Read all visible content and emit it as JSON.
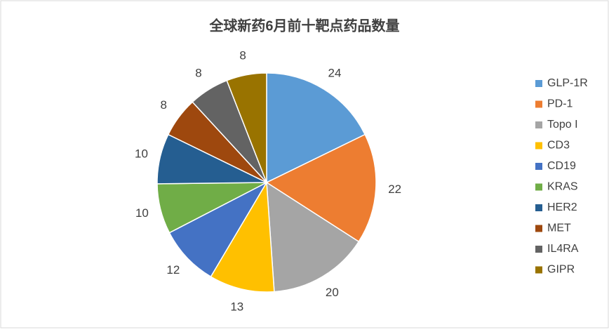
{
  "chart_data": {
    "type": "pie",
    "title": "全球新药6月前十靶点药品数量",
    "categories": [
      "GLP-1R",
      "PD-1",
      "Topo I",
      "CD3",
      "CD19",
      "KRAS",
      "HER2",
      "MET",
      "IL4RA",
      "GIPR"
    ],
    "values": [
      24,
      22,
      20,
      13,
      12,
      10,
      10,
      8,
      8,
      8
    ],
    "colors": [
      "#5b9bd5",
      "#ed7d31",
      "#a5a5a5",
      "#ffc000",
      "#4472c4",
      "#70ad47",
      "#255e91",
      "#9e480e",
      "#636363",
      "#997300"
    ],
    "legend": "right"
  }
}
